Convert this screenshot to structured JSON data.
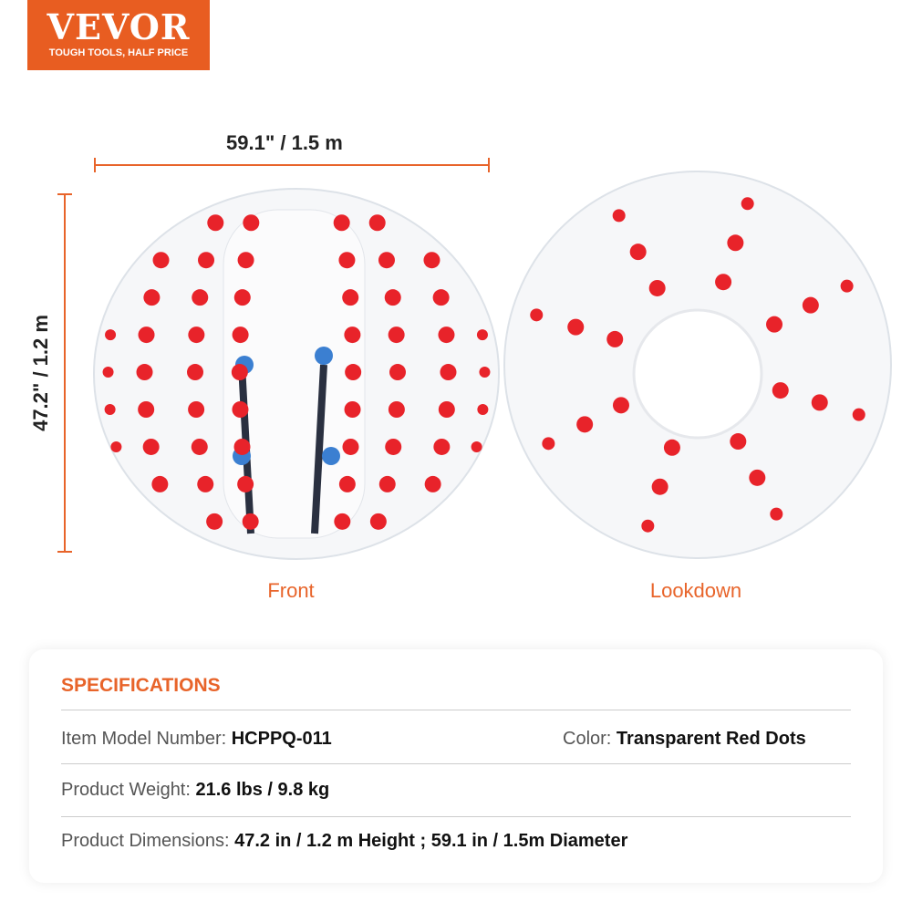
{
  "logo": {
    "brand": "VEVOR",
    "tagline": "TOUGH TOOLS, HALF PRICE"
  },
  "dimensions": {
    "width_label": "59.1\" / 1.5 m",
    "height_label": "47.2\" / 1.2 m"
  },
  "views": {
    "front": "Front",
    "lookdown": "Lookdown"
  },
  "colors": {
    "accent": "#e8642a",
    "dot": "#e8232a"
  },
  "specs": {
    "title": "SPECIFICATIONS",
    "model_label": "Item Model Number:",
    "model_value": "HCPPQ-011",
    "color_label": "Color:",
    "color_value": "Transparent Red Dots",
    "weight_label": "Product Weight:",
    "weight_value": "21.6 lbs / 9.8 kg",
    "dims_label": "Product Dimensions:",
    "dims_value": "47.2 in / 1.2 m Height ; 59.1 in / 1.5m Diameter"
  }
}
